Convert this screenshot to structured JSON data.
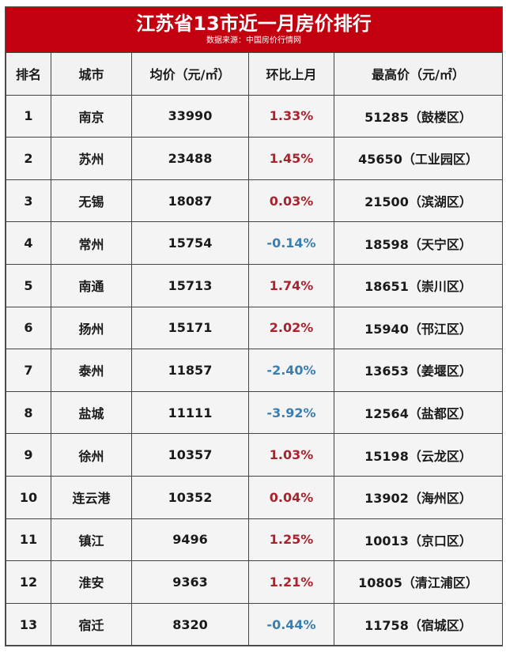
{
  "title": "江苏省13市近一月房价排行",
  "source": "数据来源：中国房价行情网",
  "colors": {
    "title_bg": "#c3000f",
    "positive": "#a8232e",
    "negative": "#3a7fb0"
  },
  "headers": [
    "排名",
    "城市",
    "均价（元/㎡）",
    "环比上月",
    "最高价（元/㎡）"
  ],
  "rows": [
    {
      "rank": "1",
      "city": "南京",
      "avg": "33990",
      "change": "1.33%",
      "max": "51285（鼓楼区）"
    },
    {
      "rank": "2",
      "city": "苏州",
      "avg": "23488",
      "change": "1.45%",
      "max": "45650（工业园区）"
    },
    {
      "rank": "3",
      "city": "无锡",
      "avg": "18087",
      "change": "0.03%",
      "max": "21500（滨湖区）"
    },
    {
      "rank": "4",
      "city": "常州",
      "avg": "15754",
      "change": "-0.14%",
      "max": "18598（天宁区）"
    },
    {
      "rank": "5",
      "city": "南通",
      "avg": "15713",
      "change": "1.74%",
      "max": "18651（崇川区）"
    },
    {
      "rank": "6",
      "city": "扬州",
      "avg": "15171",
      "change": "2.02%",
      "max": "15940（邗江区）"
    },
    {
      "rank": "7",
      "city": "泰州",
      "avg": "11857",
      "change": "-2.40%",
      "max": "13653（姜堰区）"
    },
    {
      "rank": "8",
      "city": "盐城",
      "avg": "11111",
      "change": "-3.92%",
      "max": "12564（盐都区）"
    },
    {
      "rank": "9",
      "city": "徐州",
      "avg": "10357",
      "change": "1.03%",
      "max": "15198（云龙区）"
    },
    {
      "rank": "10",
      "city": "连云港",
      "avg": "10352",
      "change": "0.04%",
      "max": "13902（海州区）"
    },
    {
      "rank": "11",
      "city": "镇江",
      "avg": "9496",
      "change": "1.25%",
      "max": "10013（京口区）"
    },
    {
      "rank": "12",
      "city": "淮安",
      "avg": "9363",
      "change": "1.21%",
      "max": "10805（清江浦区）"
    },
    {
      "rank": "13",
      "city": "宿迁",
      "avg": "8320",
      "change": "-0.44%",
      "max": "11758（宿城区）"
    }
  ]
}
